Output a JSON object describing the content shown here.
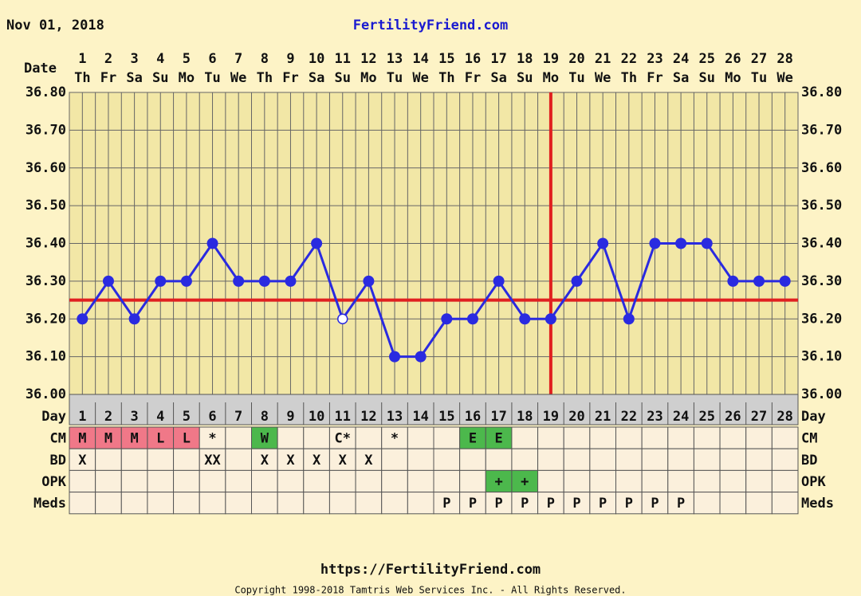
{
  "header": {
    "date": "Nov 01, 2018",
    "site": "FertilityFriend.com"
  },
  "chart_data": {
    "type": "line",
    "date_label": "Date",
    "dates": [
      "1",
      "2",
      "3",
      "4",
      "5",
      "6",
      "7",
      "8",
      "9",
      "10",
      "11",
      "12",
      "13",
      "14",
      "15",
      "16",
      "17",
      "18",
      "19",
      "20",
      "21",
      "22",
      "23",
      "24",
      "25",
      "26",
      "27",
      "28"
    ],
    "weekdays": [
      "Th",
      "Fr",
      "Sa",
      "Su",
      "Mo",
      "Tu",
      "We",
      "Th",
      "Fr",
      "Sa",
      "Su",
      "Mo",
      "Tu",
      "We",
      "Th",
      "Fr",
      "Sa",
      "Su",
      "Mo",
      "Tu",
      "We",
      "Th",
      "Fr",
      "Sa",
      "Su",
      "Mo",
      "Tu",
      "We"
    ],
    "values": [
      36.2,
      36.3,
      36.2,
      36.3,
      36.3,
      36.4,
      36.3,
      36.3,
      36.3,
      36.4,
      36.2,
      36.3,
      36.1,
      36.1,
      36.2,
      36.2,
      36.3,
      36.2,
      36.2,
      36.3,
      36.4,
      36.2,
      36.4,
      36.4,
      36.4,
      36.3,
      36.3,
      36.3
    ],
    "hollow_days": [
      11
    ],
    "color": "#2a2ae0",
    "coverline": 36.25,
    "ovulation_day": 19,
    "line_color": "#e02020",
    "ylim": [
      36.0,
      36.8
    ],
    "yticks": [
      {
        "value": 36.0,
        "label": "36.00"
      },
      {
        "value": 36.1,
        "label": "36.10"
      },
      {
        "value": 36.2,
        "label": "36.20"
      },
      {
        "value": 36.3,
        "label": "36.30"
      },
      {
        "value": 36.4,
        "label": "36.40"
      },
      {
        "value": 36.5,
        "label": "36.50"
      },
      {
        "value": 36.6,
        "label": "36.60"
      },
      {
        "value": 36.7,
        "label": "36.70"
      },
      {
        "value": 36.8,
        "label": "36.80"
      }
    ],
    "day_label": "Day",
    "days": [
      "1",
      "2",
      "3",
      "4",
      "5",
      "6",
      "7",
      "8",
      "9",
      "10",
      "11",
      "12",
      "13",
      "14",
      "15",
      "16",
      "17",
      "18",
      "19",
      "20",
      "21",
      "22",
      "23",
      "24",
      "25",
      "26",
      "27",
      "28"
    ],
    "rows": [
      {
        "label": "CM",
        "cells": [
          "M",
          "M",
          "M",
          "L",
          "L",
          "*",
          null,
          "W",
          null,
          null,
          "C*",
          null,
          "*",
          null,
          null,
          "E",
          "E",
          null,
          null,
          null,
          null,
          null,
          null,
          null,
          null,
          null,
          null,
          null
        ],
        "colors": [
          "#f07888",
          "#f07888",
          "#f07888",
          "#f07888",
          "#f07888",
          null,
          null,
          "#4cb84c",
          null,
          null,
          null,
          null,
          null,
          null,
          null,
          "#4cb84c",
          "#4cb84c",
          null,
          null,
          null,
          null,
          null,
          null,
          null,
          null,
          null,
          null,
          null
        ]
      },
      {
        "label": "BD",
        "cells": [
          "X",
          null,
          null,
          null,
          null,
          "XX",
          null,
          "X",
          "X",
          "X",
          "X",
          "X",
          null,
          null,
          null,
          null,
          null,
          null,
          null,
          null,
          null,
          null,
          null,
          null,
          null,
          null,
          null,
          null
        ],
        "colors": [
          null,
          null,
          null,
          null,
          null,
          null,
          null,
          null,
          null,
          null,
          null,
          null,
          null,
          null,
          null,
          null,
          null,
          null,
          null,
          null,
          null,
          null,
          null,
          null,
          null,
          null,
          null,
          null
        ]
      },
      {
        "label": "OPK",
        "cells": [
          null,
          null,
          null,
          null,
          null,
          null,
          null,
          null,
          null,
          null,
          null,
          null,
          null,
          null,
          null,
          null,
          "+",
          "+",
          null,
          null,
          null,
          null,
          null,
          null,
          null,
          null,
          null,
          null
        ],
        "colors": [
          null,
          null,
          null,
          null,
          null,
          null,
          null,
          null,
          null,
          null,
          null,
          null,
          null,
          null,
          null,
          null,
          "#4cb84c",
          "#4cb84c",
          null,
          null,
          null,
          null,
          null,
          null,
          null,
          null,
          null,
          null
        ]
      },
      {
        "label": "Meds",
        "cells": [
          null,
          null,
          null,
          null,
          null,
          null,
          null,
          null,
          null,
          null,
          null,
          null,
          null,
          null,
          "P",
          "P",
          "P",
          "P",
          "P",
          "P",
          "P",
          "P",
          "P",
          "P",
          null,
          null,
          null,
          null
        ],
        "colors": [
          null,
          null,
          null,
          null,
          null,
          null,
          null,
          null,
          null,
          null,
          null,
          null,
          null,
          null,
          null,
          null,
          null,
          null,
          null,
          null,
          null,
          null,
          null,
          null,
          null,
          null,
          null,
          null
        ]
      }
    ]
  },
  "footer": {
    "url": "https://FertilityFriend.com",
    "copyright": "Copyright 1998-2018 Tamtris Web Services Inc. - All Rights Reserved."
  }
}
